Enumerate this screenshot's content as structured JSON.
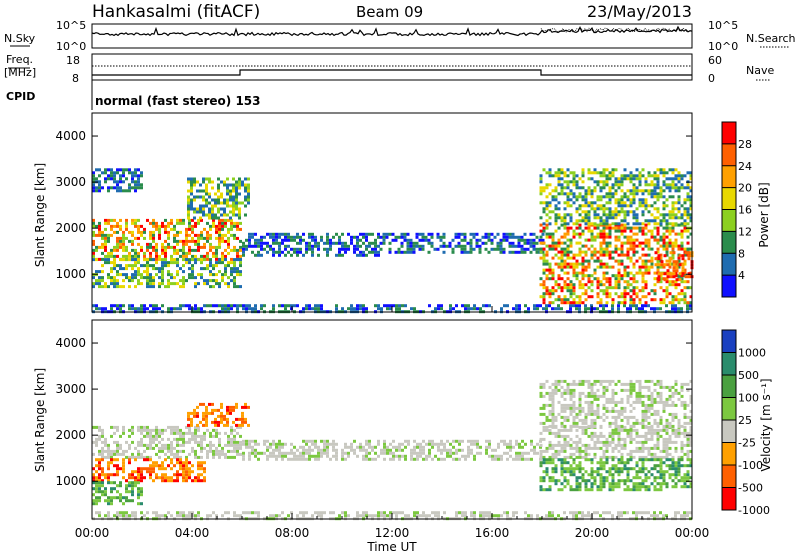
{
  "header": {
    "station": "Hankasalmi (fitACF)",
    "beam": "Beam 09",
    "date": "23/May/2013"
  },
  "noise_panel": {
    "left_label": "N.Sky",
    "right_label": "N.Search",
    "left_ticks": [
      "10^5",
      "10^0"
    ],
    "right_ticks": [
      "10^5",
      "10^0"
    ]
  },
  "freq_panel": {
    "left_label_line1": "Freq.",
    "left_label_line2": "[MHz]",
    "left_ticks": [
      "18",
      "8"
    ],
    "right_label": "Nave",
    "right_ticks": [
      "60",
      "0"
    ],
    "cpid_label": "CPID",
    "cpid_value": "normal (fast stereo) 153"
  },
  "chart_data": [
    {
      "type": "heatmap",
      "name": "power",
      "ylabel": "Slant Range [km]",
      "xlabel": "Time UT",
      "ylim": [
        180,
        4500
      ],
      "xlim": [
        0,
        24
      ],
      "yticks": [
        "4000",
        "3000",
        "2000",
        "1000"
      ],
      "colorbar": {
        "label": "Power [dB]",
        "ticks": [
          "28",
          "24",
          "20",
          "16",
          "12",
          "8",
          "4"
        ],
        "colors": [
          "#ff0000",
          "#ff6000",
          "#ffa000",
          "#e8d800",
          "#8cd020",
          "#2a8c4c",
          "#1f6cb0",
          "#1010ff"
        ]
      },
      "echo_regions": [
        {
          "t0": 0.0,
          "t1": 5.9,
          "r0": 1350,
          "r1": 2200,
          "level": "high"
        },
        {
          "t0": 0.0,
          "t1": 5.9,
          "r0": 700,
          "r1": 1350,
          "level": "mid"
        },
        {
          "t0": 0.0,
          "t1": 2.0,
          "r0": 2800,
          "r1": 3300,
          "level": "low"
        },
        {
          "t0": 3.8,
          "t1": 6.2,
          "r0": 2200,
          "r1": 3100,
          "level": "mid"
        },
        {
          "t0": 0.0,
          "t1": 24.0,
          "r0": 180,
          "r1": 350,
          "level": "low"
        },
        {
          "t0": 6.0,
          "t1": 11.5,
          "r0": 1400,
          "r1": 1900,
          "level": "low"
        },
        {
          "t0": 11.5,
          "t1": 18.0,
          "r0": 1500,
          "r1": 1900,
          "level": "low"
        },
        {
          "t0": 17.9,
          "t1": 24.0,
          "r0": 1000,
          "r1": 2100,
          "level": "high"
        },
        {
          "t0": 17.9,
          "t1": 24.0,
          "r0": 400,
          "r1": 1000,
          "level": "high"
        },
        {
          "t0": 17.9,
          "t1": 24.0,
          "r0": 2100,
          "r1": 3300,
          "level": "mid"
        },
        {
          "t0": 22.5,
          "t1": 24.0,
          "r0": 900,
          "r1": 1500,
          "level": "peak"
        }
      ]
    },
    {
      "type": "heatmap",
      "name": "velocity",
      "ylabel": "Slant Range [km]",
      "xlabel": "Time UT",
      "ylim": [
        180,
        4500
      ],
      "xlim": [
        0,
        24
      ],
      "yticks": [
        "4000",
        "3000",
        "2000",
        "1000"
      ],
      "colorbar": {
        "label": "Velocity [m s⁻¹]",
        "ticks": [
          "1000",
          "500",
          "100",
          "25",
          "-25",
          "-100",
          "-500",
          "-1000"
        ],
        "colors": [
          "#1a40c0",
          "#2a8c6c",
          "#4aa040",
          "#7cc840",
          "#c8c8c0",
          "#ffa000",
          "#ff6000",
          "#ff0000"
        ]
      },
      "echo_regions": [
        {
          "t0": 0.0,
          "t1": 5.9,
          "r0": 1500,
          "r1": 2200,
          "level": "gray"
        },
        {
          "t0": 0.0,
          "t1": 4.5,
          "r0": 1000,
          "r1": 1500,
          "level": "orange"
        },
        {
          "t0": 0.0,
          "t1": 2.0,
          "r0": 500,
          "r1": 1000,
          "level": "green"
        },
        {
          "t0": 3.8,
          "t1": 6.2,
          "r0": 2200,
          "r1": 2700,
          "level": "orange"
        },
        {
          "t0": 6.0,
          "t1": 18.0,
          "r0": 1500,
          "r1": 1900,
          "level": "gray"
        },
        {
          "t0": 17.9,
          "t1": 24.0,
          "r0": 1500,
          "r1": 2200,
          "level": "gray"
        },
        {
          "t0": 17.9,
          "t1": 24.0,
          "r0": 800,
          "r1": 1500,
          "level": "green"
        },
        {
          "t0": 17.9,
          "t1": 24.0,
          "r0": 2200,
          "r1": 3200,
          "level": "gray"
        },
        {
          "t0": 0.0,
          "t1": 24.0,
          "r0": 180,
          "r1": 350,
          "level": "gray"
        }
      ]
    }
  ],
  "x_axis": {
    "ticks": [
      "00:00",
      "04:00",
      "08:00",
      "12:00",
      "16:00",
      "20:00",
      "00:00"
    ],
    "label": "Time UT"
  }
}
